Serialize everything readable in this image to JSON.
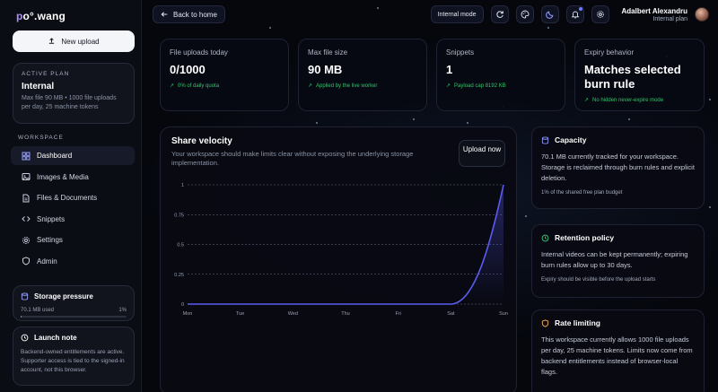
{
  "brand": {
    "name_prefix": "p",
    "name_rest": "o°.wang"
  },
  "sidebar": {
    "new_upload": "New upload",
    "plan": {
      "kicker": "ACTIVE PLAN",
      "name": "Internal",
      "desc": "Max file 90 MB • 1000 file uploads per day, 25 machine tokens"
    },
    "workspace_title": "WORKSPACE",
    "nav": [
      {
        "label": "Dashboard",
        "icon": "dashboard-icon",
        "active": true
      },
      {
        "label": "Images & Media",
        "icon": "image-icon",
        "active": false
      },
      {
        "label": "Files & Documents",
        "icon": "file-icon",
        "active": false
      },
      {
        "label": "Snippets",
        "icon": "code-icon",
        "active": false
      },
      {
        "label": "Settings",
        "icon": "gear-icon",
        "active": false
      },
      {
        "label": "Admin",
        "icon": "shield-icon",
        "active": false
      }
    ],
    "storage": {
      "title": "Storage pressure",
      "used": "70.1 MB used",
      "percent": "1%",
      "fraction": 0.01
    },
    "launch": {
      "title": "Launch note",
      "text": "Backend-owned entitlements are active. Supporter access is tied to the signed-in account, not this browser."
    }
  },
  "topbar": {
    "back": "Back to home",
    "mode": "Internal mode",
    "user_name": "Adalbert Alexandru",
    "user_plan": "Internal plan",
    "accent": "#6d7cff"
  },
  "stats": [
    {
      "label": "File uploads today",
      "value": "0/1000",
      "sub": "0% of daily quota"
    },
    {
      "label": "Max file size",
      "value": "90 MB",
      "sub": "Applied by the live worker"
    },
    {
      "label": "Snippets",
      "value": "1",
      "sub": "Payload cap 8192 KB"
    },
    {
      "label": "Expiry behavior",
      "value": "Matches selected burn rule",
      "sub": "No hidden never-expire mode"
    }
  ],
  "velocity": {
    "title": "Share velocity",
    "desc": "Your workspace should make limits clear without exposing the underlying storage implementation.",
    "upload_now": "Upload now"
  },
  "chart_data": {
    "type": "line",
    "categories": [
      "Mon",
      "Tue",
      "Wed",
      "Thu",
      "Fri",
      "Sat",
      "Sun"
    ],
    "values": [
      0,
      0,
      0,
      0,
      0,
      0,
      1
    ],
    "yticks": [
      "0",
      "0.25",
      "0.5",
      "0.75",
      "1"
    ],
    "ylim": [
      0,
      1
    ],
    "grid": true,
    "line_color": "#5b5cf0"
  },
  "right": {
    "capacity": {
      "title": "Capacity",
      "body": "70.1 MB currently tracked for your workspace. Storage is reclaimed through burn rules and explicit deletion.",
      "foot": "1% of the shared free plan budget"
    },
    "retention": {
      "title": "Retention policy",
      "body": "Internal videos can be kept permanently; expiring burn rules allow up to 30 days.",
      "foot": "Expiry should be visible before the upload starts"
    },
    "rate": {
      "title": "Rate limiting",
      "body": "This workspace currently allows 1000 file uploads per day, 25 machine tokens. Limits now come from backend entitlements instead of browser-local flags."
    }
  }
}
